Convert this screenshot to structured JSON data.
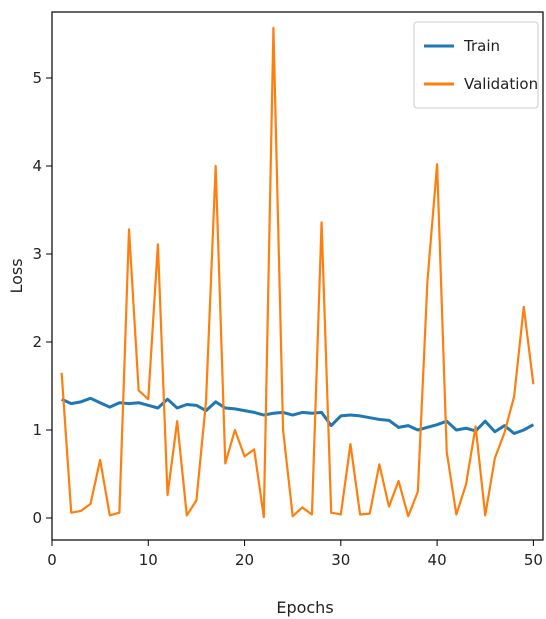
{
  "chart_data": {
    "type": "line",
    "title": "",
    "xlabel": "Epochs",
    "ylabel": "Loss",
    "xlim": [
      0,
      51
    ],
    "ylim": [
      -0.25,
      5.75
    ],
    "xticks": [
      0,
      10,
      20,
      30,
      40,
      50
    ],
    "yticks": [
      0,
      1,
      2,
      3,
      4,
      5
    ],
    "grid": false,
    "legend_position": "top-right",
    "x": [
      1,
      2,
      3,
      4,
      5,
      6,
      7,
      8,
      9,
      10,
      11,
      12,
      13,
      14,
      15,
      16,
      17,
      18,
      19,
      20,
      21,
      22,
      23,
      24,
      25,
      26,
      27,
      28,
      29,
      30,
      31,
      32,
      33,
      34,
      35,
      36,
      37,
      38,
      39,
      40,
      41,
      42,
      43,
      44,
      45,
      46,
      47,
      48,
      49,
      50
    ],
    "series": [
      {
        "name": "Train",
        "color": "#1f77b4",
        "values": [
          1.35,
          1.3,
          1.32,
          1.36,
          1.31,
          1.26,
          1.31,
          1.3,
          1.31,
          1.28,
          1.25,
          1.35,
          1.25,
          1.29,
          1.28,
          1.22,
          1.32,
          1.25,
          1.24,
          1.22,
          1.2,
          1.17,
          1.19,
          1.2,
          1.17,
          1.2,
          1.19,
          1.2,
          1.05,
          1.16,
          1.17,
          1.16,
          1.14,
          1.12,
          1.11,
          1.03,
          1.05,
          1.0,
          1.03,
          1.06,
          1.1,
          1.0,
          1.02,
          0.99,
          1.1,
          0.98,
          1.05,
          0.96,
          1.0,
          1.06
        ]
      },
      {
        "name": "Validation",
        "color": "#ff7f0e",
        "values": [
          1.65,
          0.06,
          0.08,
          0.16,
          0.66,
          0.03,
          0.06,
          3.28,
          1.45,
          1.35,
          3.11,
          0.26,
          1.1,
          0.03,
          0.2,
          1.33,
          4.0,
          0.62,
          1.0,
          0.7,
          0.78,
          0.01,
          5.57,
          1.0,
          0.02,
          0.12,
          0.04,
          3.36,
          0.06,
          0.04,
          0.84,
          0.04,
          0.05,
          0.61,
          0.13,
          0.42,
          0.02,
          0.3,
          2.7,
          4.02,
          0.75,
          0.04,
          0.38,
          1.04,
          0.03,
          0.68,
          0.97,
          1.38,
          2.4,
          1.52
        ]
      }
    ]
  }
}
